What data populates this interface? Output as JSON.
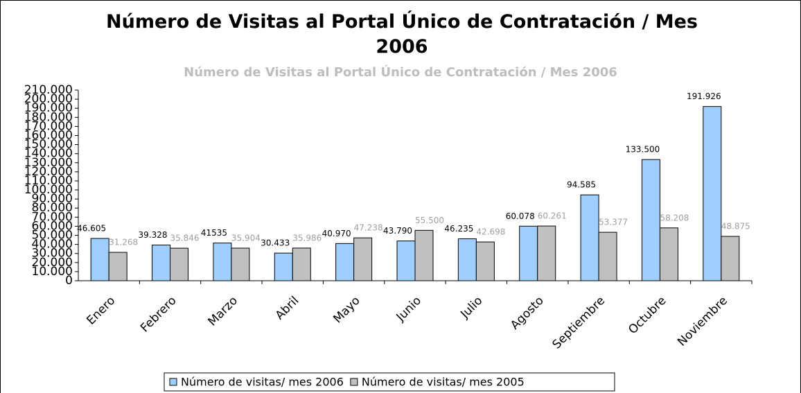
{
  "chart_data": {
    "type": "bar",
    "title": "Número de Visitas al Portal Único de Contratación / Mes 2006",
    "subtitle": "Número de Visitas al Portal Único de Contratación / Mes 2006",
    "categories": [
      "Enero",
      "Febrero",
      "Marzo",
      "Abril",
      "Mayo",
      "Junio",
      "Julio",
      "Agosto",
      "Septiembre",
      "Octubre",
      "Noviembre"
    ],
    "series": [
      {
        "name": "Número de visitas/ mes 2006",
        "color": "#9fcfff",
        "label_color": "#000000",
        "values": [
          46605,
          39328,
          41535,
          30433,
          40970,
          43790,
          46235,
          60078,
          94585,
          133500,
          191926
        ],
        "value_labels": [
          "46.605",
          "39.328",
          "41535",
          "30.433",
          "40.970",
          "43.790",
          "46.235",
          "60.078",
          "94.585",
          "133.500",
          "191.926"
        ]
      },
      {
        "name": "Número de visitas/ mes 2005",
        "color": "#c0c0c0",
        "label_color": "#a0a0a0",
        "values": [
          31268,
          35846,
          35904,
          35986,
          47238,
          55500,
          42698,
          60261,
          53377,
          58208,
          48875
        ],
        "value_labels": [
          "31.268",
          "35.846",
          "35.904",
          "35.986",
          "47.238",
          "55.500",
          "42.698",
          "60.261",
          "53.377",
          "58.208",
          "48.875"
        ]
      }
    ],
    "ylim": [
      0,
      210000
    ],
    "yticks": [
      0,
      {
        "value": 10000,
        "label": "10.000"
      },
      {
        "value": 20000,
        "label": "20.000"
      },
      {
        "value": 30000,
        "label": "30.000"
      },
      {
        "value": 40000,
        "label": "40.000"
      },
      {
        "value": 50000,
        "label": "50.000"
      },
      {
        "value": 60000,
        "label": "60.000"
      },
      {
        "value": 70000,
        "label": "70.000"
      },
      {
        "value": 80000,
        "label": "80.000"
      },
      {
        "value": 90000,
        "label": "90.000"
      },
      {
        "value": 100000,
        "label": "100.000"
      },
      {
        "value": 110000,
        "label": "110.000"
      },
      {
        "value": 120000,
        "label": "120.000"
      },
      {
        "value": 130000,
        "label": "130.000"
      },
      {
        "value": 140000,
        "label": "140.000"
      },
      {
        "value": 150000,
        "label": "150.000"
      },
      {
        "value": 160000,
        "label": "160.000"
      },
      {
        "value": 170000,
        "label": "170.000"
      },
      {
        "value": 180000,
        "label": "180.000"
      },
      {
        "value": 190000,
        "label": "190.000"
      },
      {
        "value": 200000,
        "label": "200.000"
      },
      {
        "value": 210000,
        "label": "210.000"
      }
    ],
    "legend": "bottom"
  }
}
